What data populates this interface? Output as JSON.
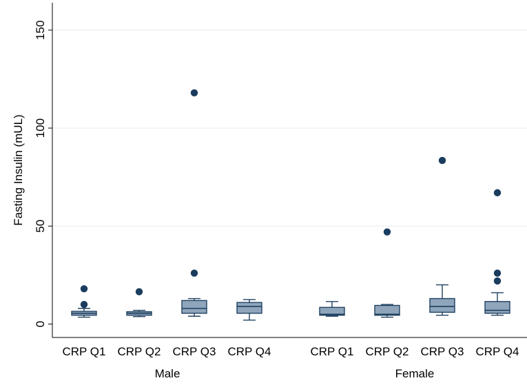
{
  "chart_data": {
    "type": "box",
    "ylabel": "Fasting Insulin (mUL)",
    "ylim": [
      0,
      155
    ],
    "yticks": [
      "0",
      "50",
      "100",
      "150"
    ],
    "ytick_values": [
      0,
      50,
      100,
      150
    ],
    "grid": true,
    "colors": {
      "box_fill": "#8fa5bc",
      "box_edge": "#1f4060",
      "outlier": "#1a3c5e",
      "grid": "#e8ecef",
      "axis": "#000000"
    },
    "groups": [
      {
        "name": "Male",
        "categories": [
          {
            "label": "CRP Q1",
            "whisker_low": 3.5,
            "q1": 4.5,
            "median": 5.5,
            "q3": 6.5,
            "whisker_high": 8,
            "outliers": [
              10,
              18
            ]
          },
          {
            "label": "CRP Q2",
            "whisker_low": 3.8,
            "q1": 4.5,
            "median": 5.5,
            "q3": 6.3,
            "whisker_high": 7,
            "outliers": [
              16.5
            ]
          },
          {
            "label": "CRP Q3",
            "whisker_low": 4,
            "q1": 5.5,
            "median": 8,
            "q3": 12,
            "whisker_high": 13,
            "outliers": [
              26,
              118
            ]
          },
          {
            "label": "CRP Q4",
            "whisker_low": 2,
            "q1": 5.5,
            "median": 9,
            "q3": 11,
            "whisker_high": 12.5,
            "outliers": []
          }
        ]
      },
      {
        "name": "Female",
        "categories": [
          {
            "label": "CRP Q1",
            "whisker_low": 4,
            "q1": 4.5,
            "median": 5,
            "q3": 8.5,
            "whisker_high": 11.5,
            "outliers": []
          },
          {
            "label": "CRP Q2",
            "whisker_low": 3.5,
            "q1": 4.5,
            "median": 5,
            "q3": 9.5,
            "whisker_high": 10,
            "outliers": [
              47
            ]
          },
          {
            "label": "CRP Q3",
            "whisker_low": 4.5,
            "q1": 6,
            "median": 9,
            "q3": 13,
            "whisker_high": 20,
            "outliers": [
              83.5
            ]
          },
          {
            "label": "CRP Q4",
            "whisker_low": 4.5,
            "q1": 5.5,
            "median": 7,
            "q3": 11.5,
            "whisker_high": 16,
            "outliers": [
              22,
              26,
              67
            ]
          }
        ]
      }
    ]
  }
}
